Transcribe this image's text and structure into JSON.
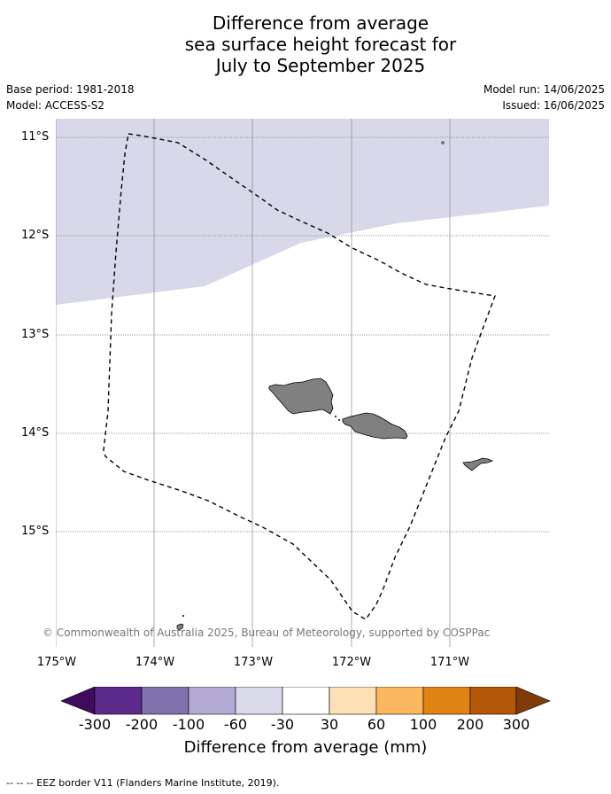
{
  "title": {
    "line1": "Difference from average",
    "line2": "sea surface height forecast for",
    "line3": "July to September 2025"
  },
  "meta": {
    "base_period": "Base period: 1981-2018",
    "model": "Model: ACCESS-S2",
    "model_run": "Model run: 14/06/2025",
    "issued": "Issued: 16/06/2025"
  },
  "map": {
    "latitude_labels": [
      "11°S",
      "12°S",
      "13°S",
      "14°S",
      "15°S"
    ],
    "longitude_labels": [
      "175°W",
      "174°W",
      "173°W",
      "172°W",
      "171°W"
    ],
    "copyright": "© Commonwealth of Australia 2025, Bureau of Meteorology, supported by COSPPac",
    "colors": {
      "anomaly_band": "#d8d8ea",
      "land": "#808080",
      "grid": "#888888"
    }
  },
  "colorbar": {
    "ticks": [
      "-300",
      "-200",
      "-100",
      "-60",
      "-30",
      "30",
      "60",
      "100",
      "200",
      "300"
    ],
    "colors": [
      "#3f0b5c",
      "#5b2a8a",
      "#8072ac",
      "#b3abd3",
      "#d9d9ea",
      "#ffffff",
      "#fee0b6",
      "#fbb75f",
      "#e08214",
      "#b35806",
      "#7f3b08"
    ],
    "label": "Difference from average (mm)"
  },
  "footnote": "--  --  -- EEZ border V11 (Flanders Marine Institute, 2019)."
}
